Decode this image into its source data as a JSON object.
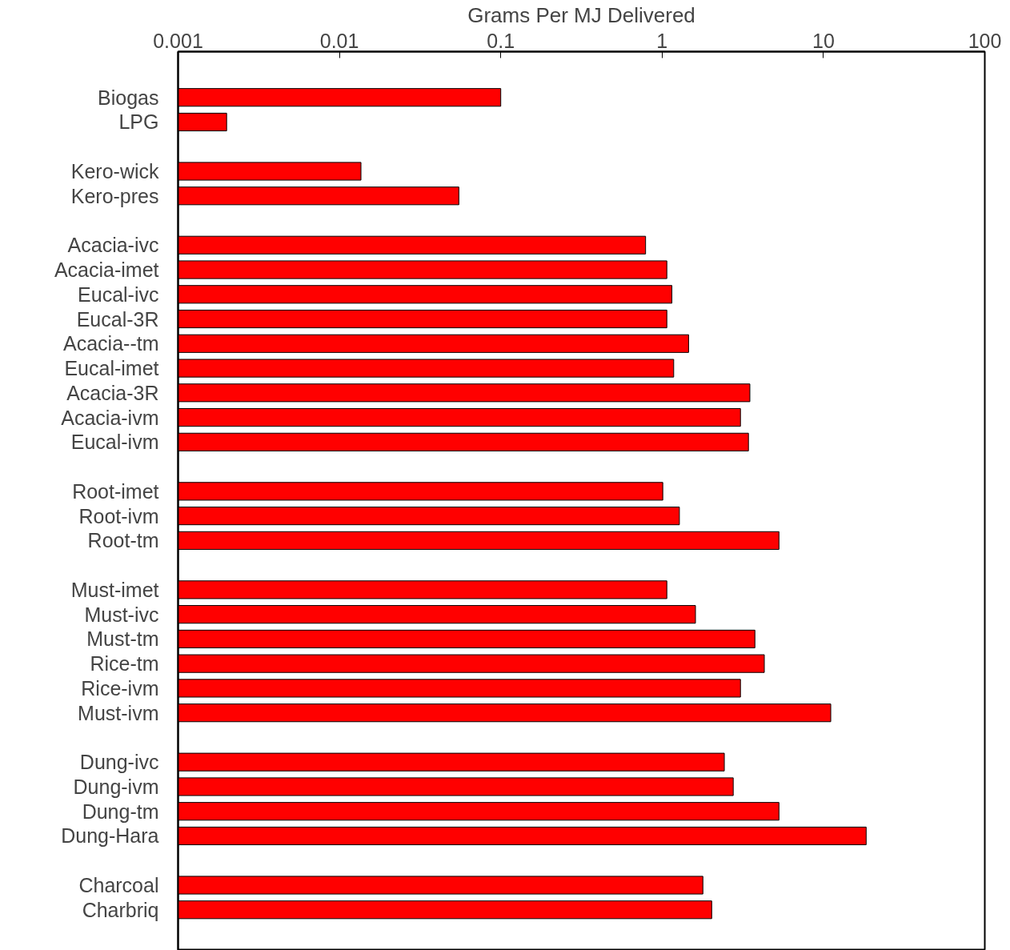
{
  "chart_data": {
    "type": "bar",
    "orientation": "horizontal",
    "xlabel": "Grams Per MJ Delivered",
    "log": "x",
    "xlim": [
      0.001,
      100
    ],
    "xticks": [
      0.001,
      0.01,
      0.1,
      1,
      10,
      100
    ],
    "categories": [
      "Biogas",
      "LPG",
      null,
      "Kero-wick",
      "Kero-pres",
      null,
      "Acacia-ivc",
      "Acacia-imet",
      "Eucal-ivc",
      "Eucal-3R",
      "Acacia--tm",
      "Eucal-imet",
      "Acacia-3R",
      "Acacia-ivm",
      "Eucal-ivm",
      null,
      "Root-imet",
      "Root-ivm",
      "Root-tm",
      null,
      "Must-imet",
      "Must-ivc",
      "Must-tm",
      "Rice-tm",
      "Rice-ivm",
      "Must-ivm",
      null,
      "Dung-ivc",
      "Dung-ivm",
      "Dung-tm",
      "Dung-Hara",
      null,
      "Charcoal",
      "Charbriq"
    ],
    "values": [
      0.1,
      0.002,
      null,
      0.0136,
      0.055,
      null,
      0.79,
      1.07,
      1.15,
      1.07,
      1.46,
      1.18,
      3.5,
      3.06,
      3.43,
      null,
      1.01,
      1.28,
      5.3,
      null,
      1.07,
      1.61,
      3.76,
      4.3,
      3.06,
      11.1,
      null,
      2.43,
      2.76,
      5.3,
      18.4,
      null,
      1.79,
      2.03
    ],
    "color": "#ff0000"
  }
}
